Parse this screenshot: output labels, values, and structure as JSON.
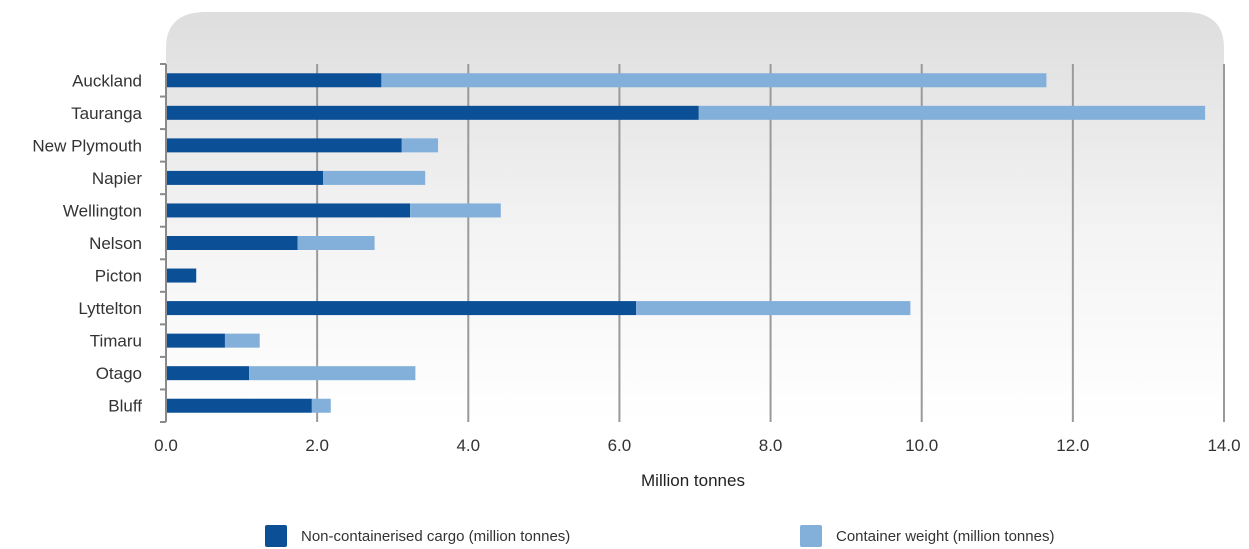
{
  "chart_data": {
    "type": "bar",
    "orientation": "horizontal",
    "stacked": true,
    "categories": [
      "Auckland",
      "Tauranga",
      "New Plymouth",
      "Napier",
      "Wellington",
      "Nelson",
      "Picton",
      "Lyttelton",
      "Timaru",
      "Otago",
      "Bluff"
    ],
    "series": [
      {
        "name": "Non-containerised cargo (million tonnes)",
        "color": "#0b4f96",
        "values": [
          2.85,
          7.05,
          3.12,
          2.08,
          3.23,
          1.74,
          0.4,
          6.22,
          0.78,
          1.1,
          1.93
        ]
      },
      {
        "name": "Container weight (million tonnes)",
        "color": "#82b0da",
        "values": [
          8.8,
          6.7,
          0.48,
          1.35,
          1.2,
          1.02,
          0.0,
          3.63,
          0.46,
          2.2,
          0.25
        ]
      }
    ],
    "xlim": [
      0,
      14
    ],
    "xticks": [
      "0.0",
      "2.0",
      "4.0",
      "6.0",
      "8.0",
      "10.0",
      "12.0",
      "14.0"
    ],
    "xlabel": "Million tonnes",
    "ylabel": "",
    "title": "",
    "grid": "vertical",
    "legend_position": "bottom"
  }
}
